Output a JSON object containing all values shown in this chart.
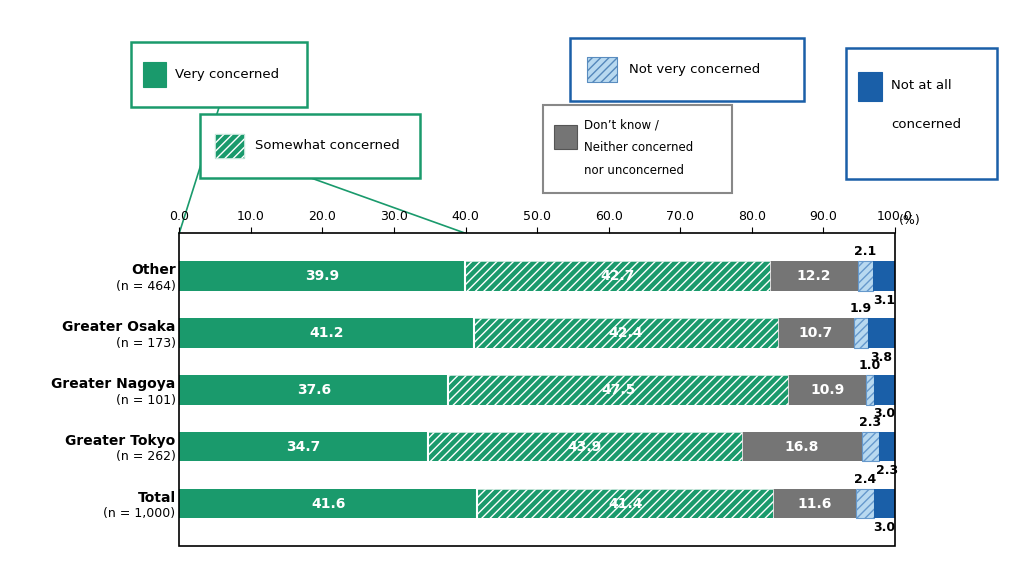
{
  "categories": [
    "Total\n(n = 1,000)",
    "Greater Tokyo\n(n = 262)",
    "Greater Nagoya\n(n = 101)",
    "Greater Osaka\n(n = 173)",
    "Other\n(n = 464)"
  ],
  "cat_line1": [
    "Total",
    "Greater Tokyo",
    "Greater Nagoya",
    "Greater Osaka",
    "Other"
  ],
  "cat_line2": [
    "(n = 1,000)",
    "(n = 262)",
    "(n = 101)",
    "(n = 173)",
    "(n = 464)"
  ],
  "very_concerned": [
    39.9,
    41.2,
    37.6,
    34.7,
    41.6
  ],
  "somewhat_concerned": [
    42.7,
    42.4,
    47.5,
    43.9,
    41.4
  ],
  "dont_know": [
    12.2,
    10.7,
    10.9,
    16.8,
    11.6
  ],
  "not_very": [
    2.1,
    1.9,
    1.0,
    2.3,
    2.4
  ],
  "not_at_all": [
    3.1,
    3.8,
    3.0,
    2.3,
    3.0
  ],
  "color_very": "#1a9a6c",
  "color_somewhat": "#1a9a6c",
  "color_dont_know": "#757575",
  "color_not_very": "#b8d9f0",
  "color_not_at_all": "#1a5fa8",
  "hatch_somewhat": "////",
  "hatch_not_very": "////",
  "xticks": [
    0.0,
    10.0,
    20.0,
    30.0,
    40.0,
    50.0,
    60.0,
    70.0,
    80.0,
    90.0,
    100.0
  ],
  "legend_very_border": "#1a9a6c",
  "legend_somewhat_border": "#1a9a6c",
  "legend_dont_border": "#757575",
  "legend_notvery_border": "#1a5fa8",
  "legend_notall_border": "#1a5fa8"
}
